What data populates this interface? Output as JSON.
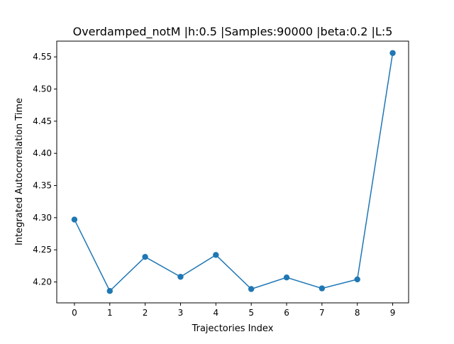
{
  "chart_data": {
    "type": "line",
    "title": "Overdamped_notM |h:0.5 |Samples:90000 |beta:0.2 |L:5",
    "xlabel": "Trajectories Index",
    "ylabel": "Integrated Autocorrelation Time",
    "x": [
      0,
      1,
      2,
      3,
      4,
      5,
      6,
      7,
      8,
      9
    ],
    "series": [
      {
        "values": [
          4.297,
          4.186,
          4.239,
          4.208,
          4.242,
          4.189,
          4.207,
          4.19,
          4.204,
          4.556
        ],
        "color": "#1f77b4",
        "marker": "circle"
      }
    ],
    "xlim": [
      -0.5,
      9.45
    ],
    "ylim": [
      4.1675,
      4.5745
    ],
    "x_ticks": [
      0,
      1,
      2,
      3,
      4,
      5,
      6,
      7,
      8,
      9
    ],
    "x_tick_labels": [
      "0",
      "1",
      "2",
      "3",
      "4",
      "5",
      "6",
      "7",
      "8",
      "9"
    ],
    "y_ticks": [
      4.2,
      4.25,
      4.3,
      4.35,
      4.4,
      4.45,
      4.5,
      4.55
    ],
    "y_tick_labels": [
      "4.20",
      "4.25",
      "4.30",
      "4.35",
      "4.40",
      "4.45",
      "4.50",
      "4.55"
    ],
    "grid": false,
    "legend": "none"
  }
}
